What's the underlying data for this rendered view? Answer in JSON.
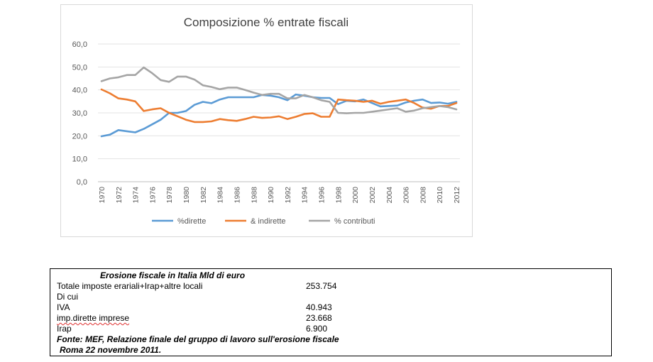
{
  "chart_data": {
    "type": "line",
    "title": "Composizione % entrate fiscali",
    "xlabel": "",
    "ylabel": "",
    "ylim": [
      0,
      60
    ],
    "yticks": [
      "0,0",
      "10,0",
      "20,0",
      "30,0",
      "40,0",
      "50,0",
      "60,0"
    ],
    "x": [
      1970,
      1971,
      1972,
      1973,
      1974,
      1975,
      1976,
      1977,
      1978,
      1979,
      1980,
      1981,
      1982,
      1983,
      1984,
      1985,
      1986,
      1987,
      1988,
      1989,
      1990,
      1991,
      1992,
      1993,
      1994,
      1995,
      1996,
      1997,
      1998,
      1999,
      2000,
      2001,
      2002,
      2003,
      2004,
      2005,
      2006,
      2007,
      2008,
      2009,
      2010,
      2011,
      2012
    ],
    "xtick_labels": [
      "1970",
      "1972",
      "1974",
      "1976",
      "1978",
      "1980",
      "1982",
      "1984",
      "1986",
      "1988",
      "1990",
      "1992",
      "1994",
      "1996",
      "1998",
      "2000",
      "2002",
      "2004",
      "2006",
      "2008",
      "2010",
      "2012"
    ],
    "grid": true,
    "legend_position": "bottom",
    "series": [
      {
        "name": "%dirette",
        "color": "#5b9bd5",
        "values": [
          19.8,
          20.5,
          22.5,
          22.0,
          21.5,
          23.0,
          25.0,
          27.0,
          30.0,
          30.0,
          30.8,
          33.5,
          34.8,
          34.2,
          35.8,
          36.8,
          36.8,
          36.8,
          36.8,
          37.8,
          37.5,
          36.8,
          35.5,
          38.0,
          37.5,
          36.8,
          36.5,
          36.5,
          33.8,
          35.3,
          35.0,
          35.8,
          34.3,
          32.8,
          33.0,
          33.2,
          34.5,
          35.3,
          35.8,
          34.3,
          34.5,
          34.0,
          34.8
        ]
      },
      {
        "name": "& indirette",
        "color": "#ed7d31",
        "values": [
          40.2,
          38.5,
          36.3,
          35.8,
          35.0,
          30.8,
          31.5,
          32.0,
          30.0,
          28.5,
          27.0,
          26.0,
          26.0,
          26.3,
          27.3,
          26.8,
          26.5,
          27.3,
          28.3,
          27.8,
          28.0,
          28.5,
          27.3,
          28.3,
          29.5,
          29.8,
          28.3,
          28.3,
          35.8,
          35.5,
          35.3,
          34.8,
          35.3,
          34.0,
          34.8,
          35.3,
          35.8,
          34.3,
          32.3,
          31.8,
          33.0,
          33.0,
          34.3
        ]
      },
      {
        "name": "% contributi",
        "color": "#a5a5a5",
        "values": [
          43.8,
          45.0,
          45.5,
          46.5,
          46.5,
          49.8,
          47.3,
          44.3,
          43.5,
          45.8,
          45.8,
          44.5,
          42.0,
          41.3,
          40.3,
          41.0,
          41.0,
          40.0,
          38.8,
          37.8,
          38.3,
          38.3,
          36.3,
          36.3,
          37.8,
          36.8,
          35.5,
          34.8,
          30.0,
          29.8,
          30.0,
          30.0,
          30.5,
          31.0,
          31.5,
          32.0,
          30.5,
          31.0,
          32.0,
          32.5,
          33.0,
          32.5,
          31.5
        ]
      }
    ]
  },
  "note": {
    "title": "Erosione fiscale in Italia Mld di euro",
    "rows": [
      {
        "label": "Totale imposte erariali+Irap+altre locali",
        "value": "253.754"
      },
      {
        "label": "Di cui",
        "value": ""
      },
      {
        "label": "IVA",
        "value": "40.943"
      },
      {
        "label": "imp.dirette imprese",
        "value": "23.668"
      },
      {
        "label": "Irap",
        "value": "6.900"
      }
    ],
    "source_line1": "Fonte: MEF, Relazione finale del gruppo di lavoro sull'erosione fiscale",
    "source_line2": "Roma 22 novembre 2011."
  }
}
